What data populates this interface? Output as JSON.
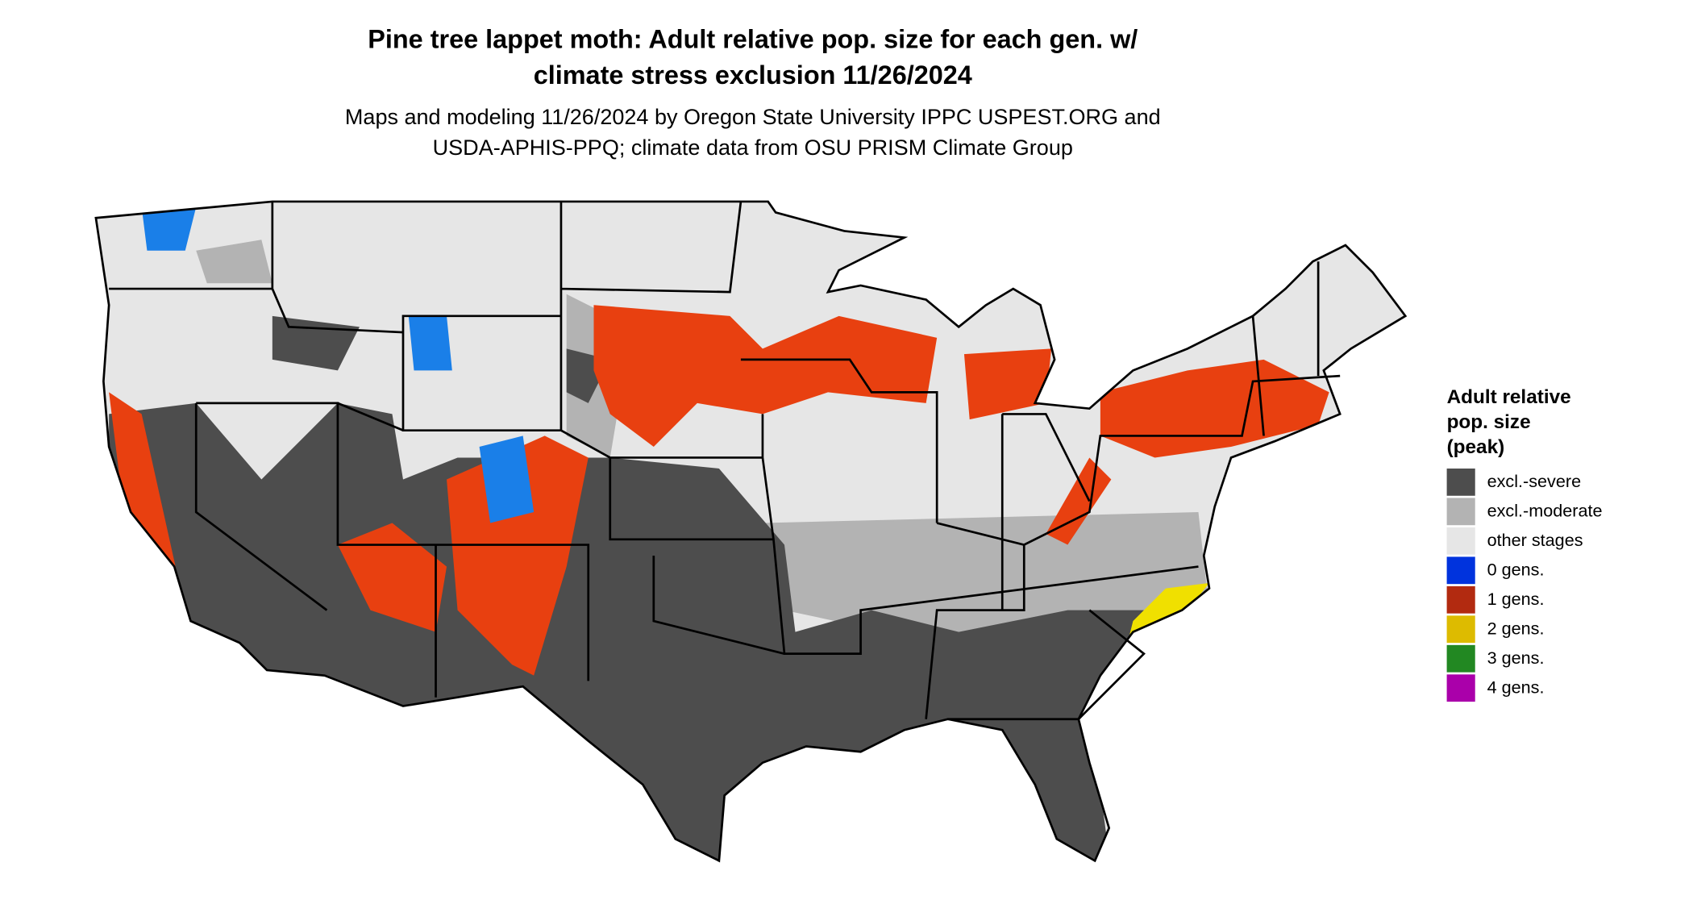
{
  "title": [
    "Pine tree lappet moth: Adult relative pop. size for each gen. w/",
    "climate stress exclusion 11/26/2024"
  ],
  "subtitle": [
    "Maps and modeling 11/26/2024 by Oregon State University IPPC USPEST.ORG and",
    "USDA-APHIS-PPQ; climate data from OSU PRISM Climate Group"
  ],
  "legend": {
    "title": [
      "Adult relative",
      "pop. size",
      "(peak)"
    ],
    "items": [
      {
        "label": "excl.-severe",
        "color": "#4d4d4d"
      },
      {
        "label": "excl.-moderate",
        "color": "#b3b3b3"
      },
      {
        "label": "other stages",
        "color": "#e6e6e6"
      },
      {
        "label": "0 gens.",
        "color": "#0033dd"
      },
      {
        "label": "1 gens.",
        "color": "#b22a10"
      },
      {
        "label": "2 gens.",
        "color": "#ddbb00"
      },
      {
        "label": "3 gens.",
        "color": "#228822"
      },
      {
        "label": "4 gens.",
        "color": "#aa00aa"
      }
    ]
  }
}
